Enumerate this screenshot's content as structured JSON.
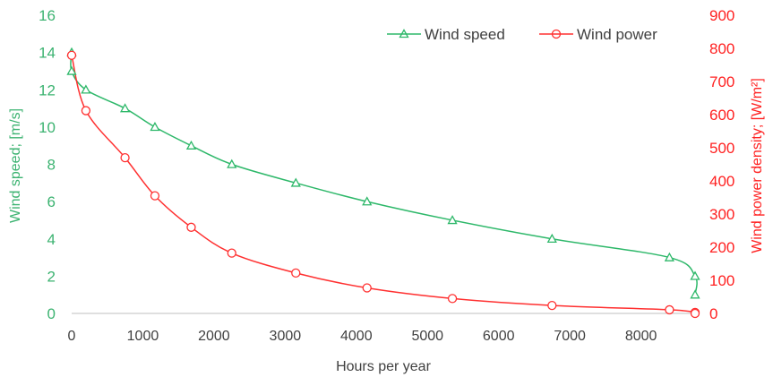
{
  "chart_data": {
    "type": "line",
    "title": "",
    "xlabel": "Hours per year",
    "ylabel_left": "Wind speed; [m/s]",
    "ylabel_right": "Wind power density; [W/m²]",
    "xlim": [
      0,
      8760
    ],
    "x_ticks": [
      0,
      1000,
      2000,
      3000,
      4000,
      5000,
      6000,
      7000,
      8000
    ],
    "ylim_left": [
      0,
      16
    ],
    "y_ticks_left": [
      0,
      2,
      4,
      6,
      8,
      10,
      12,
      14,
      16
    ],
    "ylim_right": [
      0,
      900
    ],
    "y_ticks_right": [
      0,
      100,
      200,
      300,
      400,
      500,
      600,
      700,
      800,
      900
    ],
    "grid": false,
    "legend_position": "top-right",
    "colors": {
      "left_axis": "#3cb371",
      "right_axis": "#ff2020",
      "axis_line": "#bfbfbf",
      "x_tick_text": "#404040"
    },
    "series": [
      {
        "name": "Wind speed",
        "axis": "left",
        "color": "#2eb86a",
        "marker": "triangle",
        "x": [
          0,
          0,
          200,
          750,
          1170,
          1680,
          2250,
          3150,
          4150,
          5350,
          6750,
          8400,
          8760,
          8760
        ],
        "y": [
          14,
          13,
          12,
          11,
          10,
          9,
          8,
          7,
          6,
          5,
          4,
          3,
          2,
          1
        ]
      },
      {
        "name": "Wind power",
        "axis": "right",
        "color": "#ff3030",
        "marker": "circle",
        "x": [
          0,
          200,
          750,
          1170,
          1680,
          2250,
          3150,
          4150,
          5350,
          6750,
          8400,
          8760,
          8760
        ],
        "y": [
          779,
          612,
          470,
          355,
          260,
          182,
          122,
          77,
          45,
          24,
          11,
          3,
          0
        ]
      }
    ]
  }
}
